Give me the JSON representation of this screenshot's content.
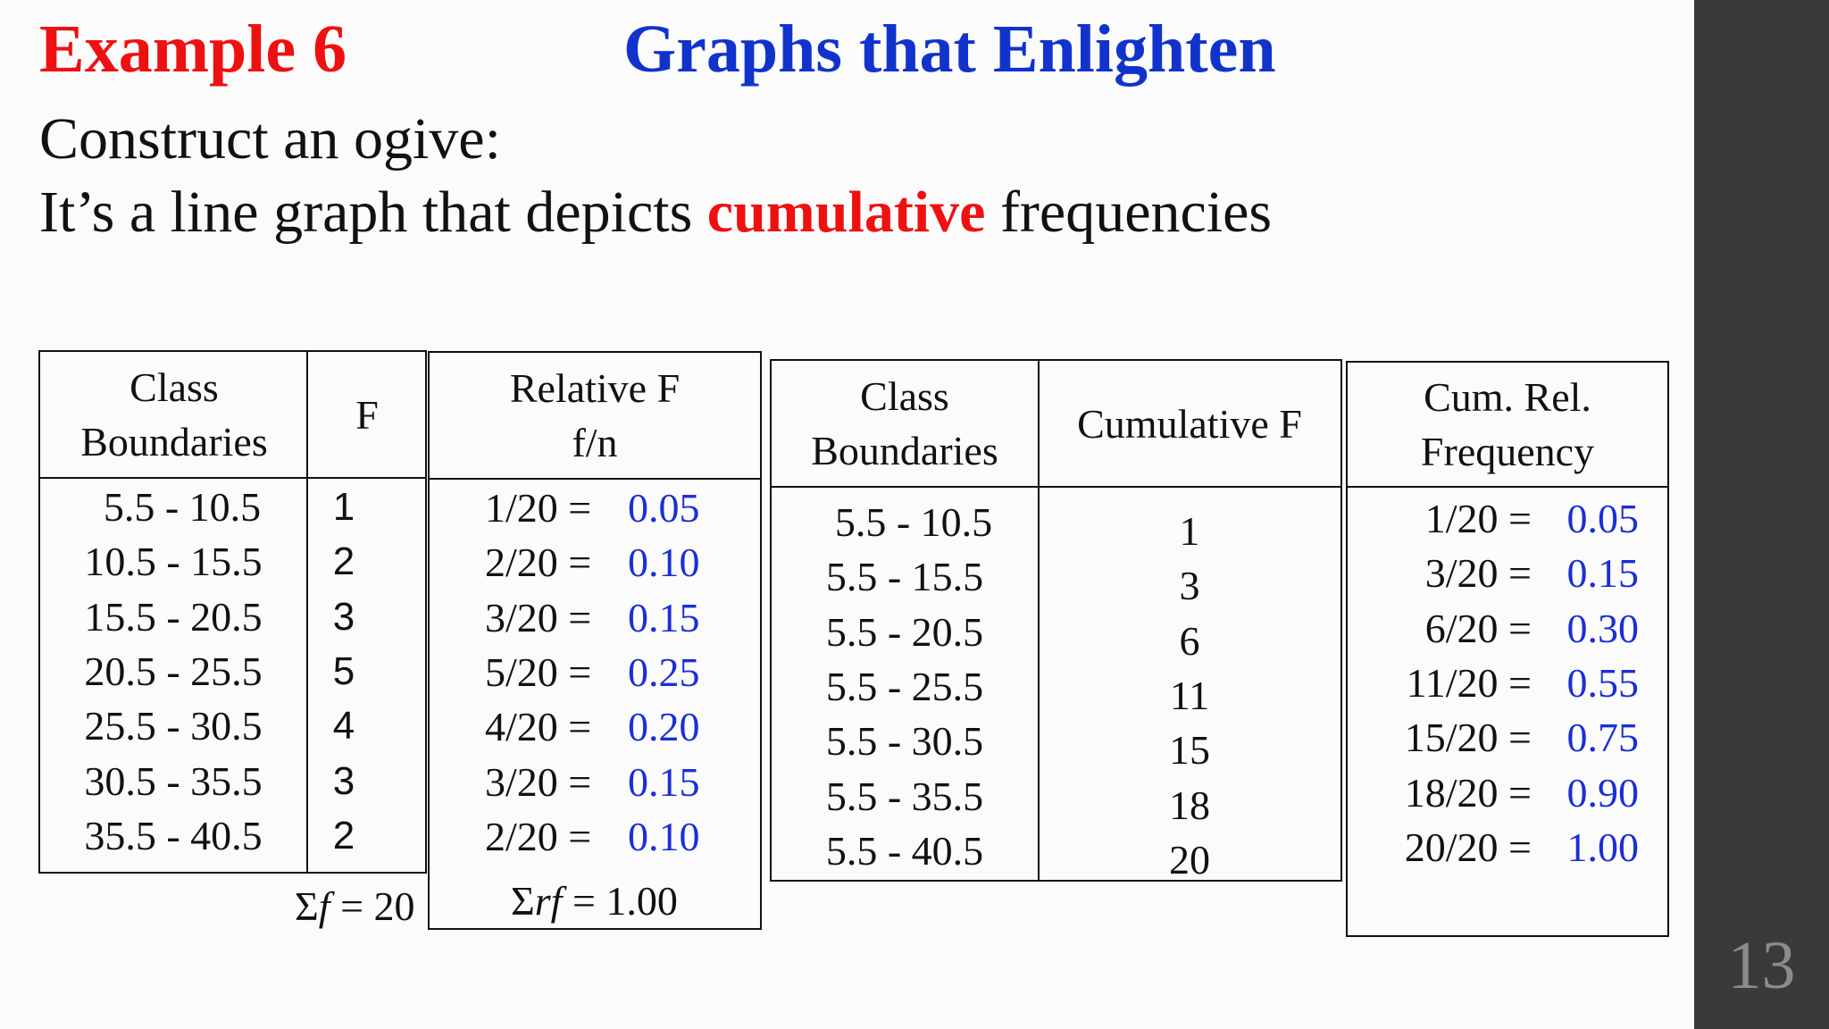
{
  "title": {
    "example": "Example 6",
    "heading": "Graphs that Enlighten"
  },
  "intro": {
    "line1": "Construct an ogive:",
    "line2_before": "It’s a line graph that depicts ",
    "line2_emph": "cumulative",
    "line2_after": " frequencies"
  },
  "table1": {
    "header_class": [
      "Class",
      "Boundaries"
    ],
    "header_f": "F",
    "rows": [
      {
        "cls": "5.5 - 10.5",
        "f": "1"
      },
      {
        "cls": "10.5 - 15.5",
        "f": "2"
      },
      {
        "cls": "15.5 - 20.5",
        "f": "3"
      },
      {
        "cls": "20.5 - 25.5",
        "f": "5"
      },
      {
        "cls": "25.5 - 30.5",
        "f": "4"
      },
      {
        "cls": "30.5 - 35.5",
        "f": "3"
      },
      {
        "cls": "35.5 - 40.5",
        "f": "2"
      }
    ],
    "sum_sym": "Σ",
    "sum_var": "f",
    "sum_val": " = 20"
  },
  "table2": {
    "header": [
      "Relative F",
      "f/n"
    ],
    "rows": [
      {
        "frac": "1/20 = ",
        "val": "0.05"
      },
      {
        "frac": "2/20 = ",
        "val": "0.10"
      },
      {
        "frac": "3/20 = ",
        "val": "0.15"
      },
      {
        "frac": "5/20 = ",
        "val": "0.25"
      },
      {
        "frac": "4/20 = ",
        "val": "0.20"
      },
      {
        "frac": "3/20 = ",
        "val": "0.15"
      },
      {
        "frac": "2/20 = ",
        "val": "0.10"
      }
    ],
    "sum_sym": "Σ",
    "sum_var": "rf",
    "sum_val": " = 1.00"
  },
  "table3": {
    "header_class": [
      "Class",
      "Boundaries"
    ],
    "header_cum": "Cumulative F",
    "rows": [
      {
        "cls": "5.5 - 10.5",
        "cum": "1"
      },
      {
        "cls": "5.5 - 15.5",
        "cum": "3"
      },
      {
        "cls": "5.5 - 20.5",
        "cum": "6"
      },
      {
        "cls": "5.5 - 25.5",
        "cum": "11"
      },
      {
        "cls": "5.5 - 30.5",
        "cum": "15"
      },
      {
        "cls": "5.5 - 35.5",
        "cum": "18"
      },
      {
        "cls": "5.5 - 40.5",
        "cum": "20"
      }
    ]
  },
  "table4": {
    "header": [
      "Cum. Rel.",
      "Frequency"
    ],
    "rows": [
      {
        "frac": "1/20 = ",
        "val": "0.05"
      },
      {
        "frac": "3/20 = ",
        "val": "0.15"
      },
      {
        "frac": "6/20 = ",
        "val": "0.30"
      },
      {
        "frac": "11/20 = ",
        "val": "0.55"
      },
      {
        "frac": "15/20 = ",
        "val": "0.75"
      },
      {
        "frac": "18/20 = ",
        "val": "0.90"
      },
      {
        "frac": "20/20 = ",
        "val": "1.00"
      }
    ]
  },
  "slide_number": "13",
  "colors": {
    "red": "#ee1111",
    "blue": "#1133cc",
    "value_blue": "#1a2fd6",
    "sidebar": "#3a3a3c"
  }
}
